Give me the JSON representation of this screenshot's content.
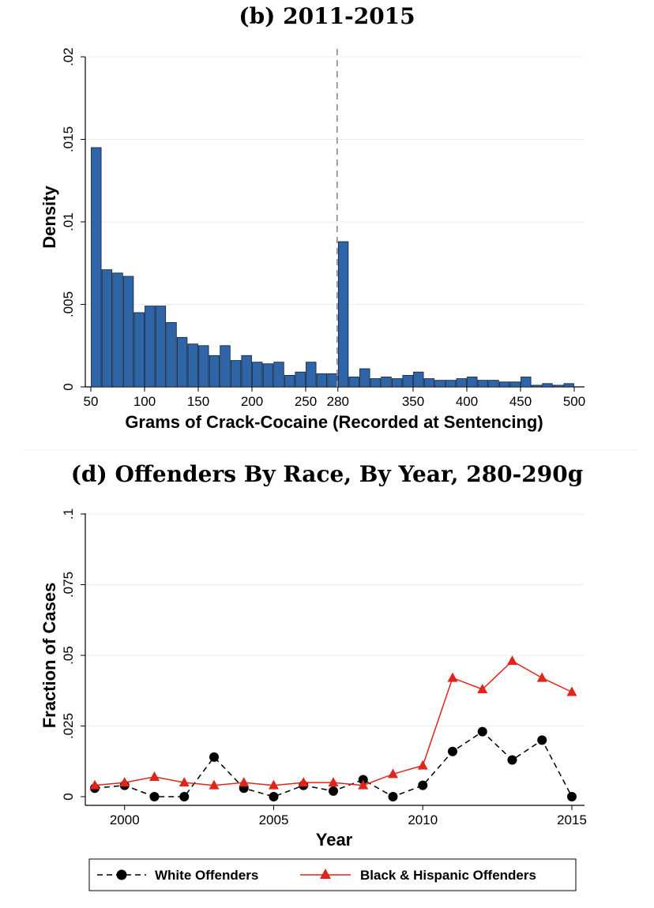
{
  "chart_data": [
    {
      "type": "bar",
      "title": "(b) 2011-2015",
      "xlabel": "Grams of Crack-Cocaine (Recorded at Sentencing)",
      "ylabel": "Density",
      "xlim": [
        50,
        500
      ],
      "ylim": [
        0,
        0.02
      ],
      "xticks": [
        "50",
        "100",
        "150",
        "200",
        "250",
        "280",
        "350",
        "400",
        "450",
        "500"
      ],
      "yticks": [
        "0",
        ".005",
        ".01",
        ".015",
        ".02"
      ],
      "grid": true,
      "reference_line_x": 280,
      "bin_width": 10,
      "bin_starts": [
        50,
        60,
        70,
        80,
        90,
        100,
        110,
        120,
        130,
        140,
        150,
        160,
        170,
        180,
        190,
        200,
        210,
        220,
        230,
        240,
        250,
        260,
        270,
        280,
        290,
        300,
        310,
        320,
        330,
        340,
        350,
        360,
        370,
        380,
        390,
        400,
        410,
        420,
        430,
        440,
        450,
        460,
        470,
        480,
        490
      ],
      "values": [
        0.0145,
        0.0071,
        0.0069,
        0.0067,
        0.0045,
        0.0049,
        0.0049,
        0.0039,
        0.003,
        0.0026,
        0.0025,
        0.0019,
        0.0025,
        0.0016,
        0.0019,
        0.0015,
        0.0014,
        0.0015,
        0.0007,
        0.0009,
        0.0015,
        0.0008,
        0.0008,
        0.0088,
        0.0006,
        0.0011,
        0.0005,
        0.0006,
        0.0005,
        0.0007,
        0.0009,
        0.0005,
        0.0004,
        0.0004,
        0.0005,
        0.0006,
        0.0004,
        0.0004,
        0.0003,
        0.0003,
        0.0006,
        0.0001,
        0.0002,
        0.0001,
        0.0002
      ],
      "bar_color": "#2f64a6"
    },
    {
      "type": "line",
      "title": "(d) Offenders By Race, By Year, 280-290g",
      "xlabel": "Year",
      "ylabel": "Fraction of Cases",
      "xlim": [
        1999,
        2015
      ],
      "ylim": [
        0,
        0.1
      ],
      "xticks": [
        "2000",
        "2005",
        "2010",
        "2015"
      ],
      "yticks": [
        "0",
        ".025",
        ".05",
        ".075",
        ".1"
      ],
      "grid": true,
      "legend_position": "bottom",
      "x": [
        1999,
        2000,
        2001,
        2002,
        2003,
        2004,
        2005,
        2006,
        2007,
        2008,
        2009,
        2010,
        2011,
        2012,
        2013,
        2014,
        2015
      ],
      "series": [
        {
          "name": "White Offenders",
          "color": "#000000",
          "marker": "circle",
          "line_style": "dashed",
          "values": [
            0.003,
            0.004,
            0.0,
            0.0,
            0.014,
            0.003,
            0.0,
            0.004,
            0.002,
            0.006,
            0.0,
            0.004,
            0.016,
            0.023,
            0.013,
            0.02,
            0.0
          ]
        },
        {
          "name": "Black & Hispanic Offenders",
          "color": "#e0251b",
          "marker": "triangle",
          "line_style": "solid",
          "values": [
            0.004,
            0.005,
            0.007,
            0.005,
            0.004,
            0.005,
            0.004,
            0.005,
            0.005,
            0.004,
            0.008,
            0.011,
            0.042,
            0.038,
            0.048,
            0.042,
            0.037
          ]
        }
      ]
    }
  ]
}
